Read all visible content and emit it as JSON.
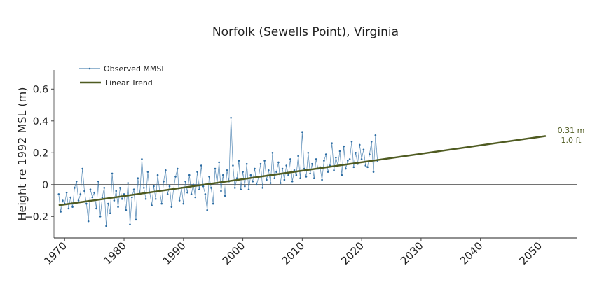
{
  "chart_data": {
    "type": "line",
    "title": "Norfolk (Sewells Point), Virginia",
    "xlabel": "",
    "ylabel": "Height re 1992 MSL (m)",
    "xlim": [
      1968.2,
      2056.2
    ],
    "ylim": [
      -0.335,
      0.72
    ],
    "xticks": [
      1970,
      1980,
      1990,
      2000,
      2010,
      2020,
      2030,
      2040,
      2050
    ],
    "yticks": [
      -0.2,
      0,
      0.2,
      0.4,
      0.6
    ],
    "ytick_labels": [
      "−0.2",
      "0",
      "0.2",
      "0.4",
      "0.6"
    ],
    "legend": {
      "placement": "top-left",
      "entries": [
        "Observed MMSL",
        "Linear Trend"
      ]
    },
    "colors": {
      "observed": "#2b6ca3",
      "trend": "#4f5b21",
      "annotation": "#4f5b21"
    },
    "series": [
      {
        "name": "Observed MMSL",
        "x_start": 1969.0,
        "x_step": 0.3333,
        "values": [
          -0.06,
          -0.17,
          -0.1,
          -0.12,
          -0.05,
          -0.15,
          -0.08,
          -0.14,
          -0.02,
          0.02,
          -0.1,
          -0.06,
          0.1,
          -0.04,
          -0.12,
          -0.23,
          -0.03,
          -0.08,
          -0.05,
          -0.15,
          0.02,
          -0.2,
          -0.08,
          -0.02,
          -0.26,
          -0.12,
          -0.18,
          0.07,
          -0.1,
          -0.04,
          -0.14,
          -0.02,
          -0.09,
          -0.06,
          -0.16,
          0.01,
          -0.25,
          -0.08,
          -0.03,
          -0.22,
          0.04,
          -0.06,
          0.16,
          -0.02,
          -0.09,
          0.08,
          -0.05,
          -0.13,
          -0.01,
          -0.09,
          0.06,
          -0.04,
          -0.12,
          0.02,
          0.09,
          -0.06,
          -0.01,
          -0.14,
          -0.03,
          0.05,
          0.1,
          -0.1,
          -0.02,
          -0.12,
          0.02,
          -0.05,
          0.06,
          -0.06,
          0.0,
          -0.08,
          0.08,
          -0.03,
          0.12,
          -0.01,
          -0.06,
          -0.16,
          0.05,
          -0.02,
          -0.12,
          0.1,
          0.01,
          0.14,
          -0.04,
          0.06,
          -0.07,
          0.09,
          0.02,
          0.42,
          0.12,
          -0.02,
          0.04,
          0.15,
          -0.03,
          0.08,
          -0.01,
          0.13,
          -0.03,
          0.06,
          0.02,
          0.1,
          0.0,
          0.05,
          0.13,
          -0.02,
          0.15,
          0.03,
          0.09,
          0.01,
          0.2,
          0.04,
          0.08,
          0.14,
          0.01,
          0.1,
          0.03,
          0.12,
          0.06,
          0.16,
          0.02,
          0.09,
          0.06,
          0.18,
          0.04,
          0.33,
          0.1,
          0.05,
          0.2,
          0.07,
          0.13,
          0.04,
          0.16,
          0.1,
          0.11,
          0.03,
          0.15,
          0.19,
          0.08,
          0.12,
          0.26,
          0.09,
          0.17,
          0.12,
          0.21,
          0.06,
          0.24,
          0.1,
          0.15,
          0.16,
          0.27,
          0.11,
          0.2,
          0.13,
          0.25,
          0.16,
          0.22,
          0.12,
          0.11,
          0.19,
          0.27,
          0.08,
          0.31,
          0.15
        ]
      },
      {
        "name": "Linear Trend",
        "x": [
          1969,
          2051
        ],
        "y": [
          -0.13,
          0.305
        ]
      }
    ],
    "annotations": {
      "meters": "0.31 m",
      "feet": "1.0 ft"
    }
  }
}
